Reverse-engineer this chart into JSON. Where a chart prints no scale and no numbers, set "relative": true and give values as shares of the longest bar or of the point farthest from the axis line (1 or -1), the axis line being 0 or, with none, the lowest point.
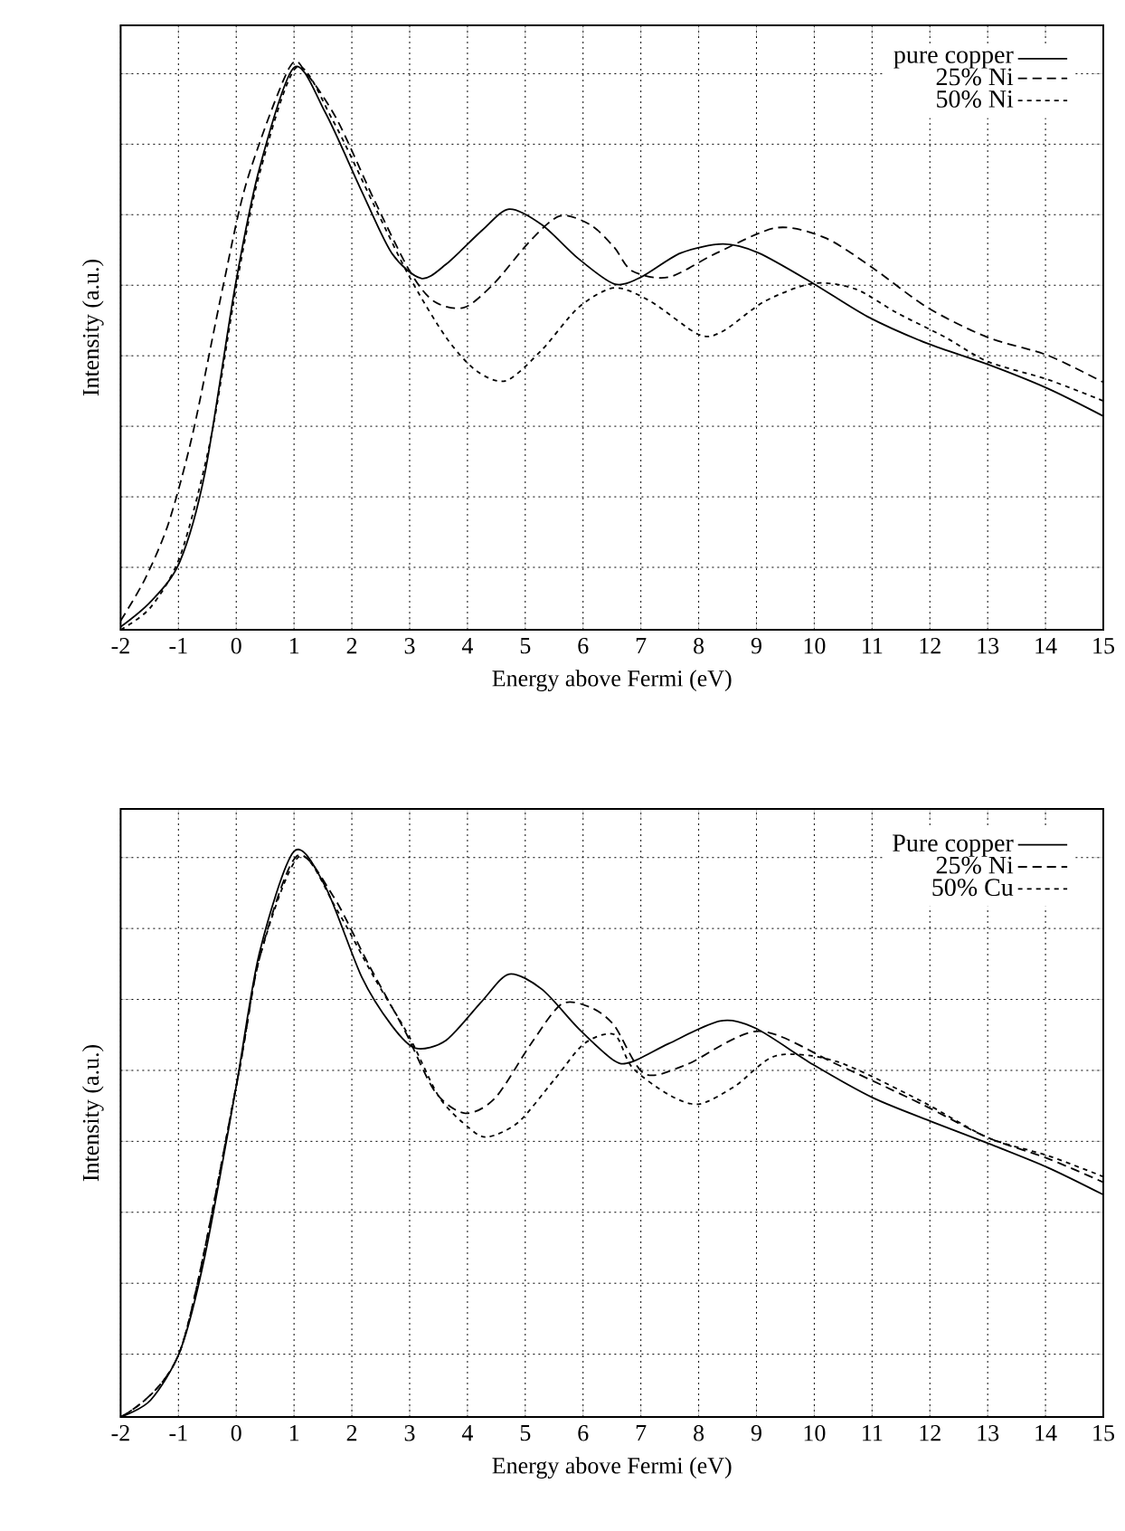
{
  "chart_data": [
    {
      "type": "line",
      "xlabel": "Energy above Fermi (eV)",
      "ylabel": "Intensity (a.u.)",
      "relative": true,
      "xlim": [
        -2,
        15
      ],
      "xticks": [
        -2,
        -1,
        0,
        1,
        2,
        3,
        4,
        5,
        6,
        7,
        8,
        9,
        10,
        11,
        12,
        13,
        14,
        15
      ],
      "grid": true,
      "legend": "top right",
      "series": [
        {
          "name": "pure copper",
          "color": "#000000",
          "line_style": "solid",
          "x": [
            -2,
            -1.48,
            -0.98,
            -0.54,
            -0.02,
            0.4,
            1.0,
            1.54,
            2.17,
            2.69,
            3.2,
            3.63,
            4.25,
            4.72,
            5.29,
            5.92,
            6.54,
            7.0,
            7.69,
            8.42,
            9.04,
            9.98,
            10.92,
            11.96,
            13.0,
            14.04,
            15
          ],
          "values": [
            0.005,
            0.05,
            0.12,
            0.28,
            0.61,
            0.82,
            1.0,
            0.92,
            0.78,
            0.67,
            0.625,
            0.65,
            0.71,
            0.748,
            0.72,
            0.66,
            0.615,
            0.627,
            0.67,
            0.686,
            0.67,
            0.616,
            0.557,
            0.509,
            0.472,
            0.429,
            0.38
          ]
        },
        {
          "name": "25% Ni",
          "color": "#000000",
          "line_style": "dashed",
          "x": [
            -2,
            -1.58,
            -1.17,
            -0.75,
            -0.23,
            0.19,
            0.92,
            1.23,
            1.75,
            2.38,
            3.0,
            3.42,
            3.94,
            4.46,
            5.08,
            5.6,
            6.13,
            6.54,
            6.85,
            7.48,
            8.31,
            9.35,
            10.19,
            11.02,
            11.96,
            13.0,
            14.04,
            15
          ],
          "values": [
            0.016,
            0.09,
            0.19,
            0.35,
            0.61,
            0.8,
            1.0,
            0.987,
            0.906,
            0.766,
            0.638,
            0.584,
            0.573,
            0.616,
            0.691,
            0.736,
            0.72,
            0.68,
            0.638,
            0.627,
            0.67,
            0.715,
            0.697,
            0.643,
            0.573,
            0.52,
            0.488,
            0.44
          ]
        },
        {
          "name": "50% Ni",
          "color": "#000000",
          "line_style": "dotted",
          "x": [
            -2,
            -1.48,
            -0.96,
            -0.44,
            0.0,
            0.4,
            1.04,
            1.67,
            2.38,
            3.0,
            3.63,
            4.15,
            4.67,
            5.29,
            5.92,
            6.54,
            7.17,
            8.0,
            8.42,
            9.14,
            9.98,
            10.71,
            11.44,
            12.27,
            13.0,
            14.04,
            15
          ],
          "values": [
            0,
            0.04,
            0.134,
            0.34,
            0.61,
            0.81,
            1.0,
            0.906,
            0.756,
            0.627,
            0.52,
            0.461,
            0.443,
            0.498,
            0.573,
            0.608,
            0.584,
            0.525,
            0.531,
            0.584,
            0.616,
            0.606,
            0.563,
            0.52,
            0.477,
            0.445,
            0.407
          ]
        }
      ]
    },
    {
      "type": "line",
      "xlabel": "Energy above Fermi (eV)",
      "ylabel": "Intensity (a.u.)",
      "relative": true,
      "xlim": [
        -2,
        15
      ],
      "xticks": [
        -2,
        -1,
        0,
        1,
        2,
        3,
        4,
        5,
        6,
        7,
        8,
        9,
        10,
        11,
        12,
        13,
        14,
        15
      ],
      "grid": true,
      "legend": "top right",
      "series": [
        {
          "name": "Pure copper",
          "color": "#000000",
          "line_style": "solid",
          "x": [
            -2,
            -1.48,
            -0.96,
            -0.54,
            0,
            0.4,
            1.0,
            1.54,
            2.17,
            2.69,
            3.1,
            3.63,
            4.25,
            4.72,
            5.29,
            5.92,
            6.54,
            6.85,
            7.48,
            8.37,
            8.99,
            9.98,
            11.02,
            12.06,
            13.0,
            14.04,
            15
          ],
          "values": [
            0,
            0.03,
            0.12,
            0.286,
            0.585,
            0.82,
            1.0,
            0.938,
            0.778,
            0.692,
            0.652,
            0.666,
            0.735,
            0.783,
            0.756,
            0.687,
            0.63,
            0.628,
            0.66,
            0.7,
            0.687,
            0.623,
            0.564,
            0.521,
            0.484,
            0.441,
            0.393
          ]
        },
        {
          "name": "25% Ni",
          "color": "#000000",
          "line_style": "dashed",
          "x": [
            -2,
            -0.96,
            0,
            0.4,
            1.04,
            1.67,
            2.29,
            2.92,
            3.44,
            3.96,
            4.48,
            5.1,
            5.63,
            6.13,
            6.54,
            7.06,
            7.79,
            9.04,
            10.4,
            11.86,
            13.0,
            14.04,
            15
          ],
          "values": [
            0,
            0.12,
            0.585,
            0.81,
            0.991,
            0.922,
            0.8,
            0.682,
            0.575,
            0.537,
            0.564,
            0.66,
            0.73,
            0.724,
            0.692,
            0.607,
            0.623,
            0.682,
            0.623,
            0.553,
            0.494,
            0.457,
            0.415
          ]
        },
        {
          "name": "50% Cu",
          "color": "#000000",
          "line_style": "dotted",
          "x": [
            -2,
            -0.96,
            0,
            0.4,
            1.09,
            1.75,
            2.38,
            3.0,
            3.52,
            4.04,
            4.35,
            4.88,
            5.5,
            6.02,
            6.54,
            6.85,
            7.48,
            8.0,
            8.63,
            9.35,
            10.4,
            11.86,
            13.0,
            14.04,
            15
          ],
          "values": [
            0,
            0.12,
            0.585,
            0.81,
            0.991,
            0.895,
            0.778,
            0.671,
            0.564,
            0.51,
            0.495,
            0.521,
            0.596,
            0.66,
            0.676,
            0.618,
            0.57,
            0.553,
            0.585,
            0.639,
            0.628,
            0.558,
            0.494,
            0.462,
            0.425
          ]
        }
      ]
    }
  ]
}
